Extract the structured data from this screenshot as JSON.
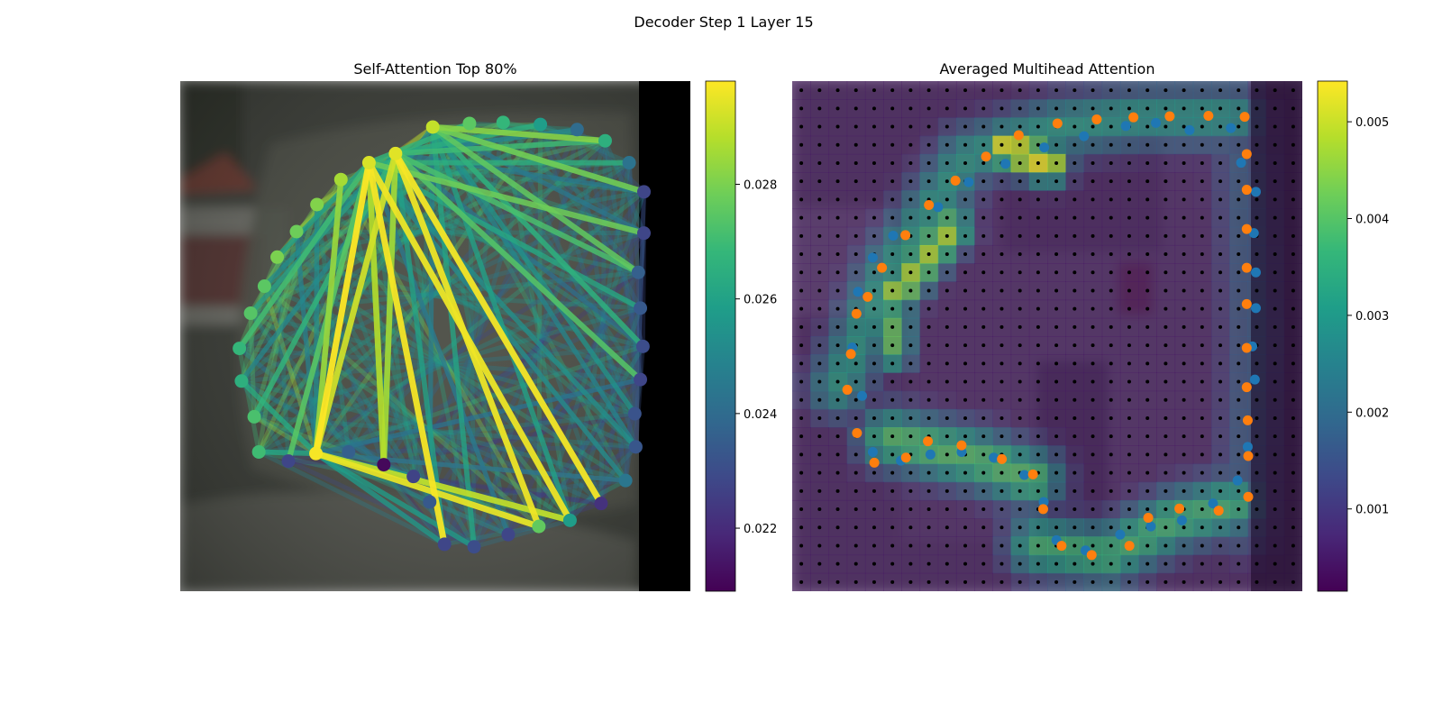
{
  "figure": {
    "suptitle": "Decoder Step 1 Layer 15"
  },
  "colors": {
    "colormap": "viridis",
    "viridis_stops": [
      "#440154",
      "#482878",
      "#3e4989",
      "#31688e",
      "#26828e",
      "#1f9e89",
      "#35b779",
      "#6ece58",
      "#b5de2b",
      "#fde725"
    ],
    "pred_points": "#ff7f0e",
    "gt_points": "#1f77b4",
    "grid_dots": "#000000",
    "photo_bg": "#40423c",
    "black_border": "#000000"
  },
  "chart_data": [
    {
      "type": "scatter",
      "title": "Self-Attention Top 80%",
      "xlim": [
        0,
        1
      ],
      "ylim": [
        0,
        1
      ],
      "colorbar": {
        "min": 0.0209,
        "max": 0.0298,
        "ticks": [
          0.022,
          0.024,
          0.026,
          0.028
        ],
        "tick_labels": [
          "0.022",
          "0.024",
          "0.026",
          "0.028"
        ]
      },
      "nodes": [
        {
          "x": 0.495,
          "y": 0.09,
          "v": 0.029
        },
        {
          "x": 0.567,
          "y": 0.083,
          "v": 0.0275
        },
        {
          "x": 0.633,
          "y": 0.081,
          "v": 0.0268
        },
        {
          "x": 0.706,
          "y": 0.085,
          "v": 0.0258
        },
        {
          "x": 0.778,
          "y": 0.095,
          "v": 0.024
        },
        {
          "x": 0.833,
          "y": 0.117,
          "v": 0.0265
        },
        {
          "x": 0.88,
          "y": 0.16,
          "v": 0.0243
        },
        {
          "x": 0.909,
          "y": 0.217,
          "v": 0.0228
        },
        {
          "x": 0.909,
          "y": 0.298,
          "v": 0.0228
        },
        {
          "x": 0.898,
          "y": 0.375,
          "v": 0.0236
        },
        {
          "x": 0.902,
          "y": 0.445,
          "v": 0.0234
        },
        {
          "x": 0.907,
          "y": 0.52,
          "v": 0.023
        },
        {
          "x": 0.902,
          "y": 0.585,
          "v": 0.0228
        },
        {
          "x": 0.891,
          "y": 0.652,
          "v": 0.0232
        },
        {
          "x": 0.893,
          "y": 0.717,
          "v": 0.0233
        },
        {
          "x": 0.873,
          "y": 0.783,
          "v": 0.0244
        },
        {
          "x": 0.825,
          "y": 0.828,
          "v": 0.0222
        },
        {
          "x": 0.764,
          "y": 0.861,
          "v": 0.0258
        },
        {
          "x": 0.703,
          "y": 0.873,
          "v": 0.0276
        },
        {
          "x": 0.643,
          "y": 0.889,
          "v": 0.0228
        },
        {
          "x": 0.576,
          "y": 0.913,
          "v": 0.023
        },
        {
          "x": 0.518,
          "y": 0.908,
          "v": 0.0228
        },
        {
          "x": 0.489,
          "y": 0.825,
          "v": 0.0234
        },
        {
          "x": 0.457,
          "y": 0.775,
          "v": 0.0227
        },
        {
          "x": 0.399,
          "y": 0.752,
          "v": 0.0211
        },
        {
          "x": 0.33,
          "y": 0.727,
          "v": 0.0236
        },
        {
          "x": 0.266,
          "y": 0.73,
          "v": 0.0297
        },
        {
          "x": 0.212,
          "y": 0.745,
          "v": 0.0228
        },
        {
          "x": 0.154,
          "y": 0.727,
          "v": 0.027
        },
        {
          "x": 0.145,
          "y": 0.658,
          "v": 0.0272
        },
        {
          "x": 0.12,
          "y": 0.588,
          "v": 0.0265
        },
        {
          "x": 0.116,
          "y": 0.524,
          "v": 0.0268
        },
        {
          "x": 0.138,
          "y": 0.455,
          "v": 0.0274
        },
        {
          "x": 0.165,
          "y": 0.402,
          "v": 0.0275
        },
        {
          "x": 0.19,
          "y": 0.345,
          "v": 0.028
        },
        {
          "x": 0.228,
          "y": 0.295,
          "v": 0.0278
        },
        {
          "x": 0.268,
          "y": 0.242,
          "v": 0.0281
        },
        {
          "x": 0.315,
          "y": 0.193,
          "v": 0.0286
        },
        {
          "x": 0.37,
          "y": 0.16,
          "v": 0.0293
        },
        {
          "x": 0.422,
          "y": 0.142,
          "v": 0.0294
        }
      ],
      "edges": [
        {
          "a": 38,
          "b": 26,
          "v": 0.0298
        },
        {
          "a": 38,
          "b": 21,
          "v": 0.0297
        },
        {
          "a": 39,
          "b": 16,
          "v": 0.0297
        },
        {
          "a": 39,
          "b": 18,
          "v": 0.0296
        },
        {
          "a": 38,
          "b": 17,
          "v": 0.0296
        },
        {
          "a": 26,
          "b": 18,
          "v": 0.0295
        },
        {
          "a": 26,
          "b": 17,
          "v": 0.029
        },
        {
          "a": 39,
          "b": 26,
          "v": 0.0292
        },
        {
          "a": 38,
          "b": 24,
          "v": 0.0288
        },
        {
          "a": 39,
          "b": 24,
          "v": 0.0286
        },
        {
          "a": 37,
          "b": 26,
          "v": 0.0284
        },
        {
          "a": 0,
          "b": 5,
          "v": 0.0282
        },
        {
          "a": 0,
          "b": 7,
          "v": 0.0279
        },
        {
          "a": 38,
          "b": 8,
          "v": 0.0278
        },
        {
          "a": 0,
          "b": 9,
          "v": 0.0276
        },
        {
          "a": 39,
          "b": 12,
          "v": 0.0274
        },
        {
          "a": 38,
          "b": 27,
          "v": 0.0275
        },
        {
          "a": 39,
          "b": 9,
          "v": 0.0272
        },
        {
          "a": 38,
          "b": 31,
          "v": 0.027
        },
        {
          "a": 39,
          "b": 29,
          "v": 0.0268
        },
        {
          "a": 0,
          "b": 11,
          "v": 0.0266
        },
        {
          "a": 38,
          "b": 6,
          "v": 0.0265
        },
        {
          "a": 39,
          "b": 3,
          "v": 0.0264
        },
        {
          "a": 38,
          "b": 10,
          "v": 0.0262
        },
        {
          "a": 0,
          "b": 20,
          "v": 0.0261
        },
        {
          "a": 39,
          "b": 21,
          "v": 0.026
        },
        {
          "a": 38,
          "b": 34,
          "v": 0.0259
        },
        {
          "a": 26,
          "b": 20,
          "v": 0.0258
        },
        {
          "a": 26,
          "b": 21,
          "v": 0.0257
        },
        {
          "a": 39,
          "b": 32,
          "v": 0.0256
        },
        {
          "a": 0,
          "b": 13,
          "v": 0.0255
        },
        {
          "a": 38,
          "b": 14,
          "v": 0.0254
        },
        {
          "a": 39,
          "b": 33,
          "v": 0.0253
        },
        {
          "a": 26,
          "b": 36,
          "v": 0.0252
        },
        {
          "a": 0,
          "b": 30,
          "v": 0.0251
        },
        {
          "a": 38,
          "b": 15,
          "v": 0.025
        },
        {
          "a": 39,
          "b": 4,
          "v": 0.0249
        },
        {
          "a": 26,
          "b": 35,
          "v": 0.0248
        },
        {
          "a": 0,
          "b": 22,
          "v": 0.0247
        },
        {
          "a": 39,
          "b": 7,
          "v": 0.0246
        },
        {
          "a": 0,
          "b": 8,
          "v": 0.0245
        },
        {
          "a": 26,
          "b": 12,
          "v": 0.0244
        },
        {
          "a": 38,
          "b": 19,
          "v": 0.0243
        },
        {
          "a": 39,
          "b": 11,
          "v": 0.0242
        },
        {
          "a": 26,
          "b": 15,
          "v": 0.0241
        },
        {
          "a": 0,
          "b": 17,
          "v": 0.026
        },
        {
          "a": 26,
          "b": 28,
          "v": 0.0262
        },
        {
          "a": 26,
          "b": 30,
          "v": 0.0263
        },
        {
          "a": 39,
          "b": 5,
          "v": 0.027
        },
        {
          "a": 38,
          "b": 1,
          "v": 0.0268
        },
        {
          "a": 26,
          "b": 23,
          "v": 0.0255
        },
        {
          "a": 0,
          "b": 14,
          "v": 0.025
        }
      ]
    },
    {
      "type": "heatmap",
      "title": "Averaged Multihead Attention",
      "xlim": [
        0,
        1
      ],
      "ylim": [
        0,
        1
      ],
      "grid_size": 28,
      "colorbar": {
        "min": 0.00015,
        "max": 0.00542,
        "ticks": [
          0.001,
          0.002,
          0.003,
          0.004,
          0.005
        ],
        "tick_labels": [
          "0.001",
          "0.002",
          "0.003",
          "0.004",
          "0.005"
        ]
      },
      "ridges": [
        {
          "pts": [
            [
              0.09,
              0.6
            ],
            [
              0.19,
              0.37
            ],
            [
              0.34,
              0.15
            ],
            [
              0.52,
              0.09
            ],
            [
              0.68,
              0.07
            ],
            [
              0.86,
              0.07
            ]
          ],
          "v": 0.0032,
          "w": 0.05
        },
        {
          "pts": [
            [
              0.42,
              0.13
            ],
            [
              0.5,
              0.16
            ]
          ],
          "v": 0.0054,
          "w": 0.035
        },
        {
          "pts": [
            [
              0.2,
              0.42
            ],
            [
              0.31,
              0.29
            ]
          ],
          "v": 0.0048,
          "w": 0.035
        },
        {
          "pts": [
            [
              0.2,
              0.47
            ],
            [
              0.2,
              0.53
            ]
          ],
          "v": 0.0042,
          "w": 0.03
        },
        {
          "pts": [
            [
              0.19,
              0.7
            ],
            [
              0.36,
              0.74
            ],
            [
              0.47,
              0.78
            ]
          ],
          "v": 0.004,
          "w": 0.05
        },
        {
          "pts": [
            [
              0.48,
              0.91
            ],
            [
              0.62,
              0.93
            ],
            [
              0.75,
              0.86
            ],
            [
              0.86,
              0.83
            ]
          ],
          "v": 0.0038,
          "w": 0.05
        },
        {
          "pts": [
            [
              0.88,
              0.15
            ],
            [
              0.9,
              0.5
            ],
            [
              0.88,
              0.88
            ]
          ],
          "v": 0.0018,
          "w": 0.05
        }
      ],
      "pred_points": [
        [
          0.887,
          0.07
        ],
        [
          0.816,
          0.068
        ],
        [
          0.74,
          0.069
        ],
        [
          0.669,
          0.071
        ],
        [
          0.597,
          0.075
        ],
        [
          0.52,
          0.083
        ],
        [
          0.444,
          0.106
        ],
        [
          0.38,
          0.148
        ],
        [
          0.32,
          0.195
        ],
        [
          0.268,
          0.243
        ],
        [
          0.222,
          0.302
        ],
        [
          0.176,
          0.366
        ],
        [
          0.148,
          0.423
        ],
        [
          0.126,
          0.456
        ],
        [
          0.115,
          0.535
        ],
        [
          0.108,
          0.605
        ],
        [
          0.127,
          0.69
        ],
        [
          0.161,
          0.748
        ],
        [
          0.223,
          0.738
        ],
        [
          0.266,
          0.706
        ],
        [
          0.332,
          0.714
        ],
        [
          0.411,
          0.741
        ],
        [
          0.472,
          0.771
        ],
        [
          0.492,
          0.839
        ],
        [
          0.528,
          0.911
        ],
        [
          0.587,
          0.929
        ],
        [
          0.661,
          0.911
        ],
        [
          0.698,
          0.856
        ],
        [
          0.759,
          0.838
        ],
        [
          0.836,
          0.842
        ],
        [
          0.894,
          0.815
        ],
        [
          0.894,
          0.735
        ],
        [
          0.893,
          0.665
        ],
        [
          0.891,
          0.6
        ],
        [
          0.891,
          0.523
        ],
        [
          0.891,
          0.437
        ],
        [
          0.891,
          0.366
        ],
        [
          0.891,
          0.29
        ],
        [
          0.891,
          0.213
        ],
        [
          0.891,
          0.143
        ]
      ],
      "gt_points": [
        [
          0.86,
          0.092
        ],
        [
          0.779,
          0.096
        ],
        [
          0.713,
          0.082
        ],
        [
          0.654,
          0.088
        ],
        [
          0.572,
          0.108
        ],
        [
          0.494,
          0.13
        ],
        [
          0.418,
          0.162
        ],
        [
          0.346,
          0.198
        ],
        [
          0.286,
          0.247
        ],
        [
          0.198,
          0.303
        ],
        [
          0.158,
          0.346
        ],
        [
          0.129,
          0.413
        ],
        [
          0.118,
          0.522
        ],
        [
          0.137,
          0.617
        ],
        [
          0.158,
          0.727
        ],
        [
          0.213,
          0.744
        ],
        [
          0.271,
          0.732
        ],
        [
          0.332,
          0.727
        ],
        [
          0.395,
          0.738
        ],
        [
          0.455,
          0.772
        ],
        [
          0.493,
          0.825
        ],
        [
          0.518,
          0.9
        ],
        [
          0.575,
          0.92
        ],
        [
          0.643,
          0.889
        ],
        [
          0.703,
          0.873
        ],
        [
          0.764,
          0.861
        ],
        [
          0.825,
          0.828
        ],
        [
          0.873,
          0.783
        ],
        [
          0.893,
          0.717
        ],
        [
          0.907,
          0.585
        ],
        [
          0.902,
          0.52
        ],
        [
          0.909,
          0.445
        ],
        [
          0.909,
          0.375
        ],
        [
          0.905,
          0.298
        ],
        [
          0.909,
          0.217
        ],
        [
          0.88,
          0.16
        ]
      ]
    }
  ]
}
